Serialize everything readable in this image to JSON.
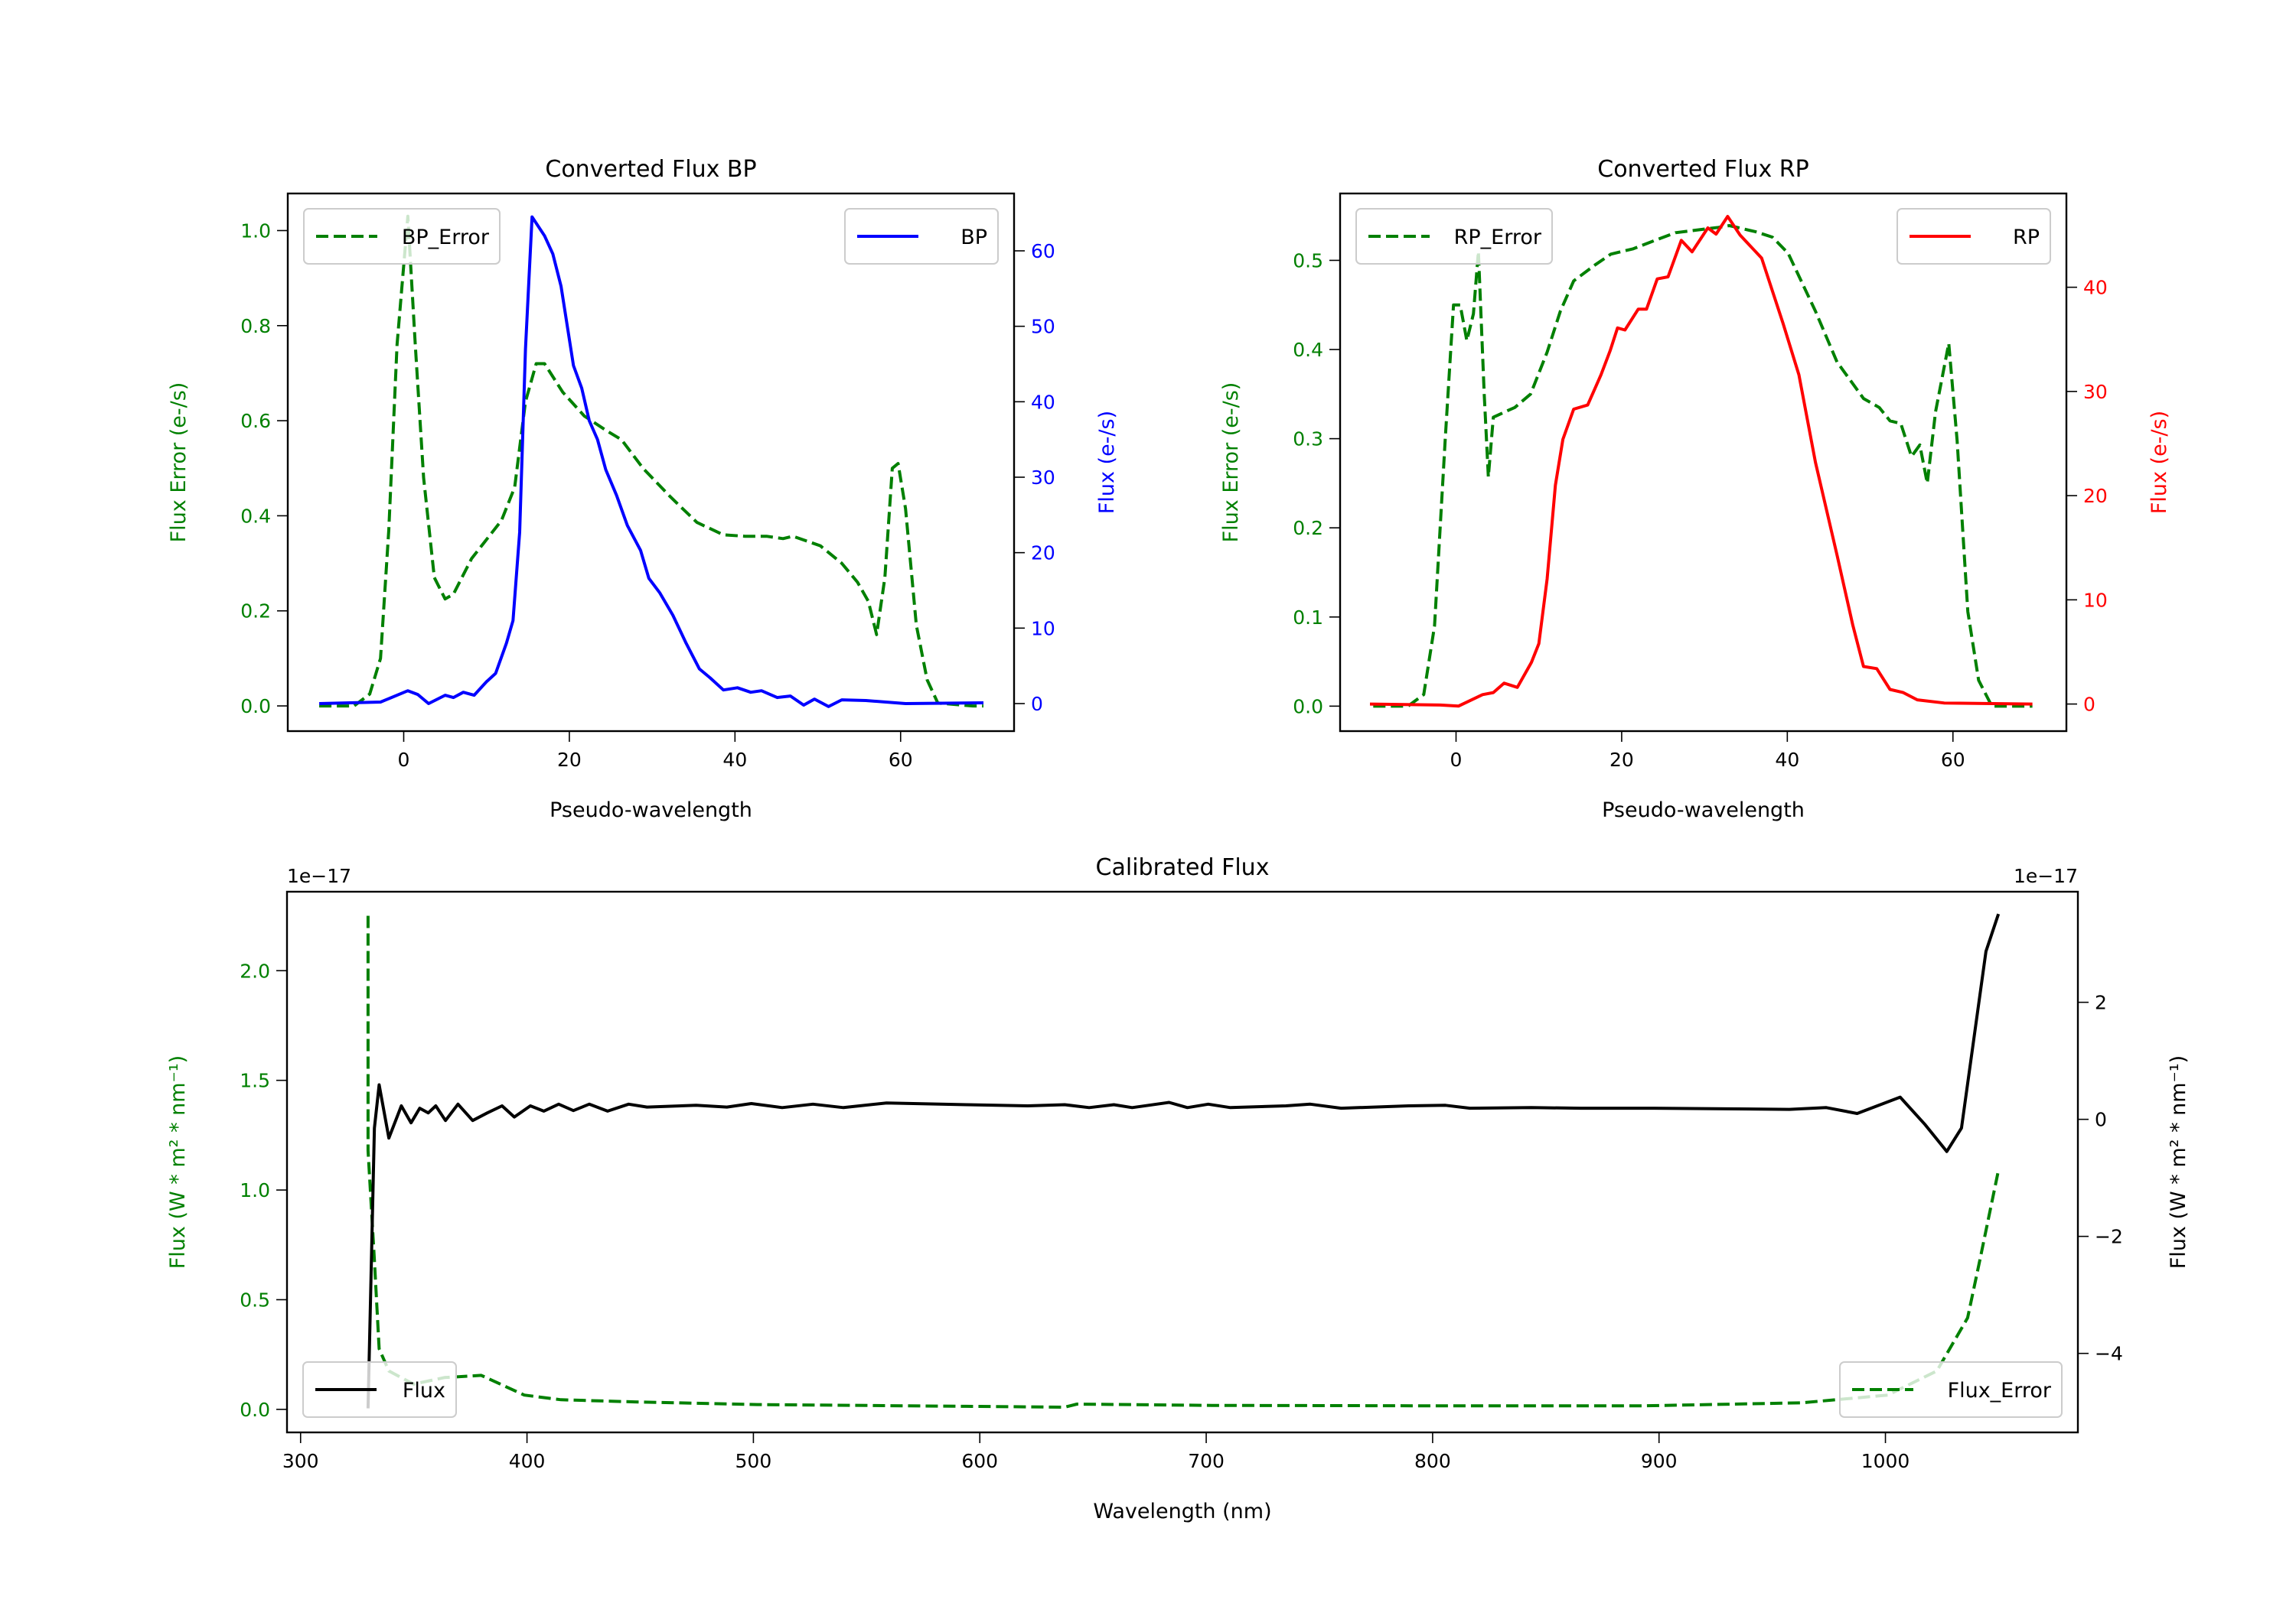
{
  "chart_data": [
    {
      "type": "line",
      "title": "Converted Flux BP",
      "xlabel": "Pseudo-wavelength",
      "ylabel": "Flux Error (e-/s)",
      "ylabel_right": "Flux (e-/s)",
      "xlim": [
        -14,
        73.7
      ],
      "ylim": [
        -0.053,
        1.078
      ],
      "ylim_right": [
        -3.65,
        67.6
      ],
      "xticks": [
        0,
        20,
        40,
        60
      ],
      "xtick_labels": [
        "0",
        "20",
        "40",
        "60"
      ],
      "yticks": [
        0,
        0.2,
        0.4,
        0.6,
        0.8,
        1.0
      ],
      "ytick_labels": [
        "0.0",
        "0.2",
        "0.4",
        "0.6",
        "0.8",
        "1.0"
      ],
      "yticks_right": [
        0,
        10,
        20,
        30,
        40,
        50,
        60
      ],
      "ytick_labels_right": [
        "0",
        "10",
        "20",
        "30",
        "40",
        "50",
        "60"
      ],
      "grid": false,
      "left_color": "#008000",
      "right_color": "#0000ff",
      "series": [
        {
          "name": "BP_Error",
          "axis": "left",
          "color": "#008000",
          "style": "dashed",
          "legend": "upper-left",
          "x": [
            -10.2,
            -6,
            -4.1,
            -2.8,
            -1.8,
            -0.8,
            0.5,
            1.4,
            2.4,
            3.7,
            5,
            6,
            8.2,
            11.8,
            13.4,
            14.7,
            16,
            17,
            19.2,
            21.8,
            24.4,
            26.3,
            28.9,
            32.2,
            35.4,
            38.6,
            41.2,
            43.8,
            45.8,
            47,
            50.3,
            52.9,
            54.8,
            56.1,
            57.1,
            58.1,
            59,
            59.7,
            60.6,
            61.9,
            63.2,
            64.5,
            68.7,
            70
          ],
          "y": [
            0,
            0,
            0.025,
            0.1,
            0.37,
            0.76,
            1.03,
            0.76,
            0.48,
            0.27,
            0.225,
            0.235,
            0.31,
            0.39,
            0.46,
            0.64,
            0.72,
            0.72,
            0.66,
            0.61,
            0.58,
            0.56,
            0.5,
            0.44,
            0.386,
            0.36,
            0.357,
            0.357,
            0.352,
            0.357,
            0.337,
            0.3,
            0.26,
            0.22,
            0.15,
            0.27,
            0.5,
            0.51,
            0.415,
            0.17,
            0.055,
            0.006,
            0,
            0
          ]
        },
        {
          "name": "BP",
          "axis": "right",
          "color": "#0000ff",
          "style": "solid",
          "legend": "upper-right",
          "x": [
            -10.2,
            -2.8,
            0.5,
            1.7,
            3,
            5,
            6,
            7.2,
            8.5,
            10,
            11.1,
            12.4,
            13.2,
            14,
            14.7,
            15.5,
            17,
            18,
            19,
            20.5,
            21.5,
            22.4,
            23.4,
            24.4,
            25.7,
            27,
            28.6,
            29.6,
            30.9,
            32.5,
            34.1,
            35.7,
            37,
            38.6,
            40.3,
            41.9,
            43.2,
            45.1,
            46.7,
            48.3,
            49.6,
            51.3,
            52.9,
            55.8,
            60.6,
            70
          ],
          "y": [
            0,
            0.2,
            1.7,
            1.2,
            0,
            1.1,
            0.8,
            1.5,
            1.1,
            2.9,
            4,
            8,
            11,
            22.7,
            47,
            64.5,
            62,
            59.6,
            55.3,
            44.8,
            41.8,
            37.5,
            35,
            31,
            27.6,
            23.6,
            20.3,
            16.6,
            14.7,
            11.7,
            8,
            4.6,
            3.4,
            1.8,
            2.1,
            1.5,
            1.7,
            0.8,
            1,
            -0.2,
            0.6,
            -0.4,
            0.5,
            0.4,
            0,
            0.1
          ]
        }
      ]
    },
    {
      "type": "line",
      "title": "Converted Flux RP",
      "xlabel": "Pseudo-wavelength",
      "ylabel": "Flux Error (e-/s)",
      "ylabel_right": "Flux (e-/s)",
      "xlim": [
        -14,
        73.7
      ],
      "ylim": [
        -0.028,
        0.575
      ],
      "ylim_right": [
        -2.6,
        49
      ],
      "xticks": [
        0,
        20,
        40,
        60
      ],
      "xtick_labels": [
        "0",
        "20",
        "40",
        "60"
      ],
      "yticks": [
        0,
        0.1,
        0.2,
        0.3,
        0.4,
        0.5
      ],
      "ytick_labels": [
        "0.0",
        "0.1",
        "0.2",
        "0.3",
        "0.4",
        "0.5"
      ],
      "yticks_right": [
        0,
        10,
        20,
        30,
        40
      ],
      "ytick_labels_right": [
        "0",
        "10",
        "20",
        "30",
        "40"
      ],
      "grid": false,
      "left_color": "#008000",
      "right_color": "#ff0000",
      "series": [
        {
          "name": "RP_Error",
          "axis": "left",
          "color": "#008000",
          "style": "dashed",
          "legend": "upper-left",
          "x": [
            -10,
            -5.8,
            -3.9,
            -2.6,
            -1.3,
            -0.3,
            0.5,
            1.3,
            2.1,
            2.7,
            3.4,
            3.9,
            4.5,
            5.9,
            7.1,
            9,
            11,
            12.6,
            14.2,
            16.8,
            18.7,
            21.4,
            23.9,
            26.5,
            31.7,
            33,
            36.2,
            38.2,
            40.1,
            43.4,
            46,
            49.2,
            51.1,
            52.4,
            53.7,
            55,
            56,
            56.9,
            57.9,
            59.5,
            60.5,
            61.8,
            63.1,
            64.7,
            69.6
          ],
          "y": [
            0,
            0,
            0.013,
            0.09,
            0.3,
            0.45,
            0.45,
            0.41,
            0.44,
            0.51,
            0.35,
            0.257,
            0.324,
            0.33,
            0.335,
            0.35,
            0.397,
            0.443,
            0.477,
            0.495,
            0.507,
            0.513,
            0.522,
            0.531,
            0.537,
            0.539,
            0.532,
            0.526,
            0.508,
            0.443,
            0.386,
            0.345,
            0.335,
            0.32,
            0.317,
            0.28,
            0.293,
            0.25,
            0.33,
            0.407,
            0.298,
            0.106,
            0.029,
            0,
            0
          ]
        },
        {
          "name": "RP",
          "axis": "right",
          "color": "#ff0000",
          "style": "solid",
          "legend": "upper-right",
          "x": [
            -10.4,
            -1.9,
            0.3,
            3.2,
            4.5,
            5.8,
            7.4,
            9.1,
            10,
            11,
            12,
            12.9,
            14.2,
            15.9,
            17.5,
            18.6,
            19.5,
            20.4,
            22,
            23,
            24.3,
            25.6,
            27.2,
            28.5,
            30.4,
            31.4,
            32.8,
            34.3,
            36.9,
            39.5,
            41.4,
            43.4,
            46,
            47.9,
            49.2,
            50.8,
            52.4,
            54,
            55.7,
            58.9,
            69.6
          ],
          "y": [
            0,
            -0.1,
            -0.2,
            0.9,
            1.1,
            2,
            1.6,
            4,
            5.8,
            12,
            21,
            25.4,
            28.3,
            28.7,
            31.6,
            33.9,
            36.1,
            35.9,
            37.9,
            37.9,
            40.8,
            41,
            44.5,
            43.4,
            45.7,
            45.1,
            46.8,
            45,
            42.8,
            36.5,
            31.6,
            23.2,
            14.3,
            7.6,
            3.6,
            3.4,
            1.4,
            1.1,
            0.4,
            0.1,
            0
          ]
        }
      ]
    },
    {
      "type": "line",
      "title": "Calibrated Flux",
      "xlabel": "Wavelength (nm)",
      "ylabel": "Flux (W * m² * nm⁻¹)",
      "ylabel_right": "Flux (W * m² * nm⁻¹)",
      "offset_left": "1e−17",
      "offset_right": "1e−17",
      "xlim": [
        294,
        1085
      ],
      "ylim": [
        -0.105,
        2.36
      ],
      "ylim_right": [
        -5.35,
        3.89
      ],
      "xticks": [
        300,
        400,
        500,
        600,
        700,
        800,
        900,
        1000
      ],
      "xtick_labels": [
        "300",
        "400",
        "500",
        "600",
        "700",
        "800",
        "900",
        "1000"
      ],
      "yticks": [
        0,
        0.5,
        1.0,
        1.5,
        2.0
      ],
      "ytick_labels": [
        "0.0",
        "0.5",
        "1.0",
        "1.5",
        "2.0"
      ],
      "yticks_right": [
        -4,
        -2,
        0,
        2
      ],
      "ytick_labels_right": [
        "−4",
        "−2",
        "0",
        "2"
      ],
      "grid": false,
      "left_color": "#008000",
      "right_color": "#000000",
      "series": [
        {
          "name": "Flux_Error",
          "axis": "left",
          "color": "#008000",
          "style": "dashed",
          "legend": "lower-right",
          "x": [
            329.8,
            329.8,
            332.6,
            334.7,
            339,
            349.9,
            363.5,
            379.8,
            398.8,
            415,
            447.6,
            501.8,
            594,
            637.5,
            642.9,
            702.6,
            811.1,
            892.5,
            963,
            1001,
            1022.7,
            1036.3,
            1041.7,
            1049.9
          ],
          "y": [
            2.25,
            1.18,
            0.68,
            0.276,
            0.175,
            0.115,
            0.145,
            0.155,
            0.065,
            0.044,
            0.034,
            0.022,
            0.014,
            0.01,
            0.024,
            0.018,
            0.016,
            0.016,
            0.03,
            0.065,
            0.175,
            0.417,
            0.68,
            1.09
          ]
        },
        {
          "name": "Flux",
          "axis": "right",
          "color": "#000000",
          "style": "solid",
          "legend": "lower-left",
          "x": [
            329.8,
            332.6,
            334.7,
            339,
            344.5,
            348.8,
            352.6,
            356.4,
            359.7,
            364,
            369.5,
            376,
            382.5,
            389,
            394.4,
            401.5,
            407.4,
            414,
            420.5,
            427.5,
            435.6,
            444.9,
            453,
            474.7,
            488.3,
            499.1,
            512.7,
            526.3,
            539.8,
            558.8,
            594.1,
            621.2,
            637.5,
            648.3,
            659.2,
            667.3,
            683.6,
            691.7,
            700.9,
            710.7,
            735.2,
            746,
            759.6,
            789.4,
            805.7,
            816.5,
            843.6,
            865.4,
            897.9,
            957.6,
            973.9,
            987.5,
            1006.5,
            1017.3,
            1027.1,
            1033.6,
            1039,
            1044.4,
            1049.9
          ],
          "y": [
            -4.94,
            -0.15,
            0.59,
            -0.32,
            0.23,
            -0.06,
            0.19,
            0.11,
            0.23,
            -0.02,
            0.26,
            -0.02,
            0.11,
            0.23,
            0.04,
            0.23,
            0.14,
            0.26,
            0.15,
            0.26,
            0.14,
            0.26,
            0.21,
            0.24,
            0.21,
            0.27,
            0.2,
            0.26,
            0.2,
            0.28,
            0.25,
            0.23,
            0.25,
            0.2,
            0.25,
            0.2,
            0.29,
            0.2,
            0.26,
            0.2,
            0.23,
            0.26,
            0.19,
            0.23,
            0.24,
            0.19,
            0.2,
            0.19,
            0.19,
            0.17,
            0.2,
            0.1,
            0.38,
            -0.08,
            -0.55,
            -0.15,
            1.36,
            2.87,
            3.51
          ]
        }
      ]
    }
  ]
}
